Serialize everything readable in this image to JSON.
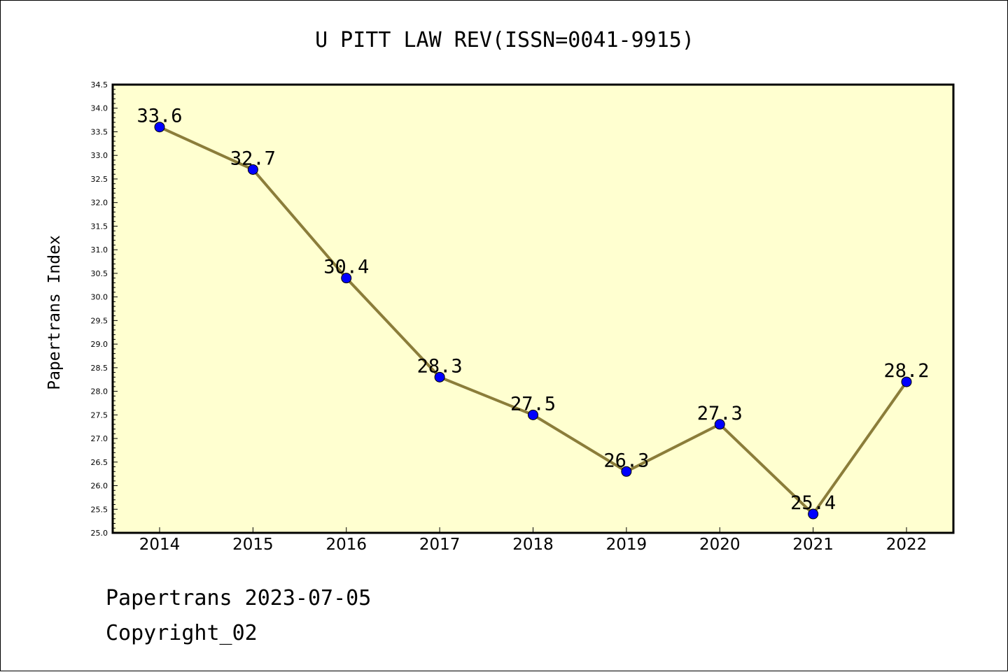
{
  "chart_data": {
    "type": "line",
    "title": "U PITT LAW REV(ISSN=0041-9915)",
    "ylabel": "Papertrans Index",
    "xlabel": "",
    "categories": [
      "2014",
      "2015",
      "2016",
      "2017",
      "2018",
      "2019",
      "2020",
      "2021",
      "2022"
    ],
    "series": [
      {
        "values": [
          33.6,
          32.7,
          30.4,
          28.3,
          27.5,
          26.3,
          27.3,
          25.4,
          28.2
        ],
        "labels": [
          "33.6",
          "32.7",
          "30.4",
          "28.3",
          "27.5",
          "26.3",
          "27.3",
          "25.4",
          "28.2"
        ]
      }
    ],
    "ylim": [
      25.0,
      34.5
    ],
    "ytick_labels": [
      "25.0",
      "25.5",
      "26.0",
      "26.5",
      "27.0",
      "27.5",
      "28.0",
      "28.5",
      "29.0",
      "29.5",
      "30.0",
      "30.5",
      "31.0",
      "31.5",
      "32.0",
      "32.5",
      "33.0",
      "33.5",
      "34.0",
      "34.5"
    ],
    "grid": false,
    "legend": "none",
    "colors": {
      "plot_background": "#ffffd0",
      "line": "#8b7d3a",
      "marker": "#0000ff"
    }
  },
  "footer": {
    "line1": "Papertrans 2023-07-05",
    "line2": "Copyright_02"
  }
}
